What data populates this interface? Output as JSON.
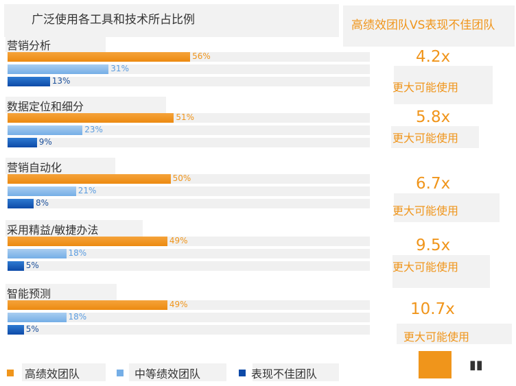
{
  "title": "广泛使用各工具和技术所占比例",
  "compare_title": "高绩效团队VS表现不佳团队",
  "more_label": "更大可能使用",
  "colors": {
    "high": "#f0951b",
    "mid": "#75aee6",
    "low": "#0d4aa8"
  },
  "legend": {
    "high": "高绩效团队",
    "mid": "中等绩效团队",
    "low": "表现不佳团队"
  },
  "chart_data": {
    "type": "bar",
    "orientation": "horizontal",
    "categories": [
      "营销分析",
      "数据定位和细分",
      "营销自动化",
      "采用精益/敏捷办法",
      "智能预测"
    ],
    "series": [
      {
        "name": "高绩效团队",
        "values": [
          56,
          51,
          50,
          49,
          49
        ],
        "labels": [
          "56%",
          "51%",
          "50%",
          "49%",
          "49%"
        ]
      },
      {
        "name": "中等绩效团队",
        "values": [
          31,
          23,
          21,
          18,
          18
        ],
        "labels": [
          "31%",
          "23%",
          "21%",
          "18%",
          "18%"
        ]
      },
      {
        "name": "表现不佳团队",
        "values": [
          13,
          9,
          8,
          5,
          5
        ],
        "labels": [
          "13%",
          "9%",
          "8%",
          "5%",
          "5%"
        ]
      }
    ],
    "ratios": [
      "4.2x",
      "5.8x",
      "6.7x",
      "9.5x",
      "10.7x"
    ],
    "xlim": [
      0,
      100
    ],
    "legend_position": "bottom"
  }
}
